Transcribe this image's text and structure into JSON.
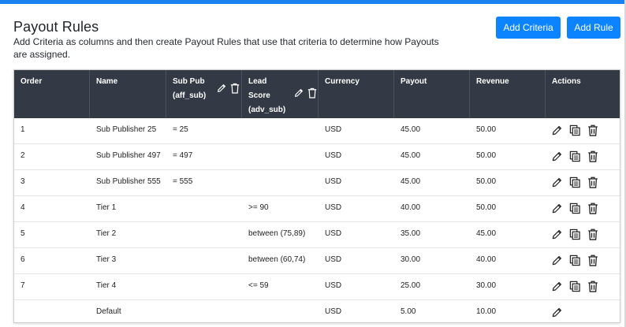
{
  "page": {
    "title": "Payout Rules",
    "description": "Add Criteria as columns and then create Payout Rules that use that criteria to determine how Payouts are assigned.",
    "add_criteria_label": "Add Criteria",
    "add_rule_label": "Add Rule"
  },
  "colors": {
    "accent": "#0d84ff",
    "header_bg": "#343a45"
  },
  "table": {
    "headers": {
      "order": "Order",
      "name": "Name",
      "subpub_line1": "Sub Pub",
      "subpub_line2": "(aff_sub)",
      "lead_line1": "Lead",
      "lead_line2": "Score",
      "lead_line3": "(adv_sub)",
      "currency": "Currency",
      "payout": "Payout",
      "revenue": "Revenue",
      "actions": "Actions"
    },
    "rows": [
      {
        "order": "1",
        "name": "Sub Publisher 25",
        "subpub": "= 25",
        "lead": "",
        "currency": "USD",
        "payout": "45.00",
        "revenue": "50.00"
      },
      {
        "order": "2",
        "name": "Sub Publisher 497",
        "subpub": "= 497",
        "lead": "",
        "currency": "USD",
        "payout": "45.00",
        "revenue": "50.00"
      },
      {
        "order": "3",
        "name": "Sub Publisher 555",
        "subpub": "= 555",
        "lead": "",
        "currency": "USD",
        "payout": "45.00",
        "revenue": "50.00"
      },
      {
        "order": "4",
        "name": "Tier 1",
        "subpub": "",
        "lead": ">= 90",
        "currency": "USD",
        "payout": "40.00",
        "revenue": "50.00"
      },
      {
        "order": "5",
        "name": "Tier 2",
        "subpub": "",
        "lead": "between (75,89)",
        "currency": "USD",
        "payout": "35.00",
        "revenue": "45.00"
      },
      {
        "order": "6",
        "name": "Tier 3",
        "subpub": "",
        "lead": "between (60,74)",
        "currency": "USD",
        "payout": "30.00",
        "revenue": "40.00"
      },
      {
        "order": "7",
        "name": "Tier 4",
        "subpub": "",
        "lead": "<= 59",
        "currency": "USD",
        "payout": "25.00",
        "revenue": "30.00"
      },
      {
        "order": "",
        "name": "Default",
        "subpub": "",
        "lead": "",
        "currency": "USD",
        "payout": "5.00",
        "revenue": "10.00"
      }
    ],
    "row_actions": [
      "edit-icon",
      "copy-icon",
      "delete-icon"
    ],
    "default_row_actions": [
      "edit-icon"
    ]
  }
}
